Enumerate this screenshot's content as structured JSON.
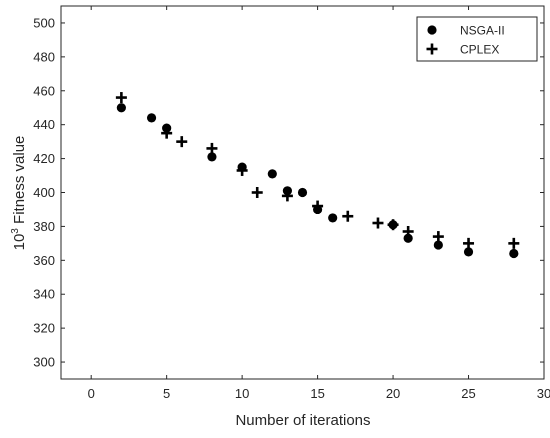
{
  "chart_data": {
    "type": "scatter",
    "title": "",
    "xlabel": "Number of iterations",
    "ylabel_base": "10",
    "ylabel_exp": "3",
    "ylabel_rest": " Fitness value",
    "xlim": [
      -2,
      30
    ],
    "ylim": [
      290,
      510
    ],
    "xticks": [
      0,
      5,
      10,
      15,
      20,
      25,
      30
    ],
    "yticks": [
      300,
      320,
      340,
      360,
      380,
      400,
      420,
      440,
      460,
      480,
      500
    ],
    "grid": false,
    "legend_position": "top-right",
    "series": [
      {
        "name": "NSGA-II",
        "marker": "circle",
        "color": "#000000",
        "x": [
          2,
          4,
          5,
          8,
          10,
          12,
          13,
          14,
          15,
          16,
          20,
          21,
          23,
          25,
          28
        ],
        "y": [
          450,
          444,
          438,
          421,
          415,
          411,
          401,
          400,
          390,
          385,
          381,
          373,
          369,
          365,
          364
        ]
      },
      {
        "name": "CPLEX",
        "marker": "plus",
        "color": "#000000",
        "x": [
          2,
          5,
          6,
          8,
          10,
          11,
          13,
          15,
          17,
          19,
          20,
          21,
          23,
          25,
          28
        ],
        "y": [
          456,
          435,
          430,
          426,
          413,
          400,
          398,
          392,
          386,
          382,
          381,
          377,
          374,
          370,
          370
        ]
      }
    ]
  }
}
